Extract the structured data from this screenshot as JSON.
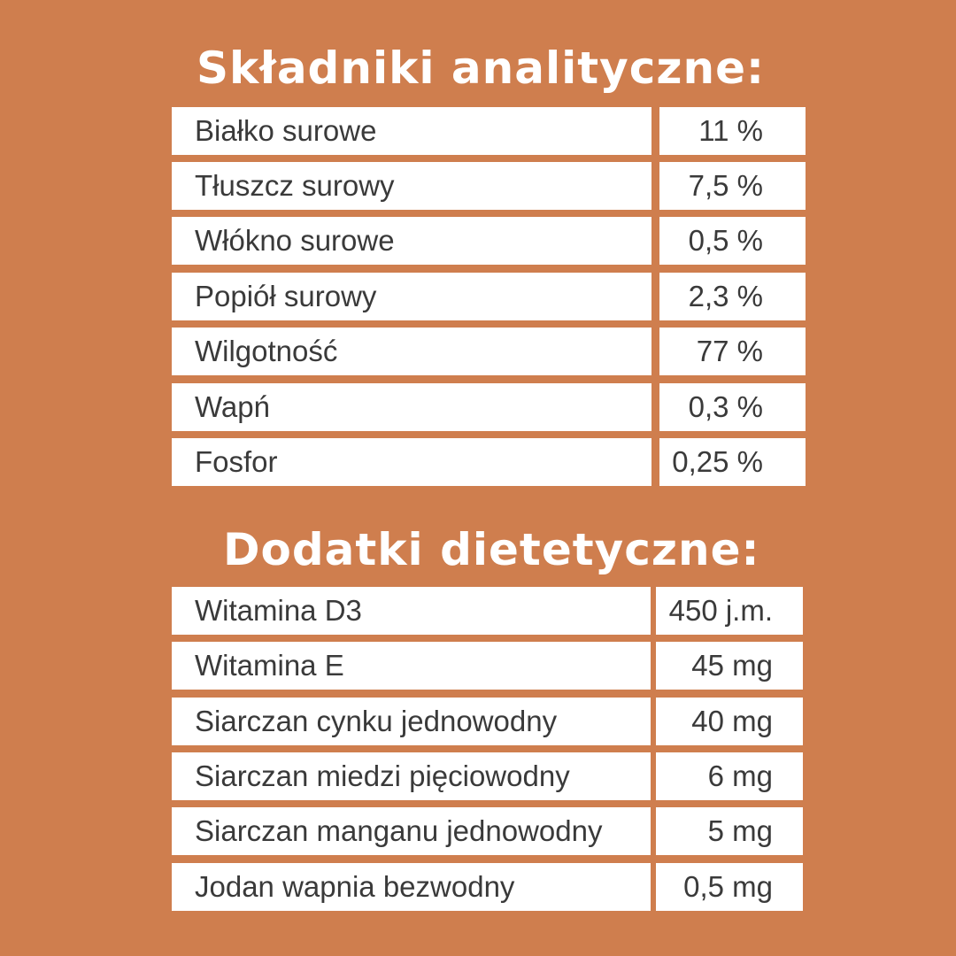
{
  "analytical": {
    "title": "Składniki analityczne:",
    "rows": [
      {
        "label": "Białko surowe",
        "value": "11 %"
      },
      {
        "label": "Tłuszcz surowy",
        "value": "7,5 %"
      },
      {
        "label": "Włókno surowe",
        "value": "0,5 %"
      },
      {
        "label": "Popiół surowy",
        "value": "2,3 %"
      },
      {
        "label": "Wilgotność",
        "value": "77 %"
      },
      {
        "label": "Wapń",
        "value": "0,3 %"
      },
      {
        "label": "Fosfor",
        "value": "0,25 %"
      }
    ]
  },
  "additives": {
    "title": "Dodatki dietetyczne:",
    "rows": [
      {
        "label": "Witamina D3",
        "value": "450 j.m."
      },
      {
        "label": "Witamina E",
        "value": "45 mg"
      },
      {
        "label": "Siarczan  cynku jednowodny",
        "value": "40 mg"
      },
      {
        "label": "Siarczan  miedzi pięciowodny",
        "value": "6 mg"
      },
      {
        "label": "Siarczan  manganu jednowodny",
        "value": "5 mg"
      },
      {
        "label": "Jodan wapnia bezwodny",
        "value": "0,5 mg"
      }
    ]
  },
  "colors": {
    "background": "#cf7e4e",
    "cell": "#ffffff",
    "text": "#3a3a3a"
  }
}
